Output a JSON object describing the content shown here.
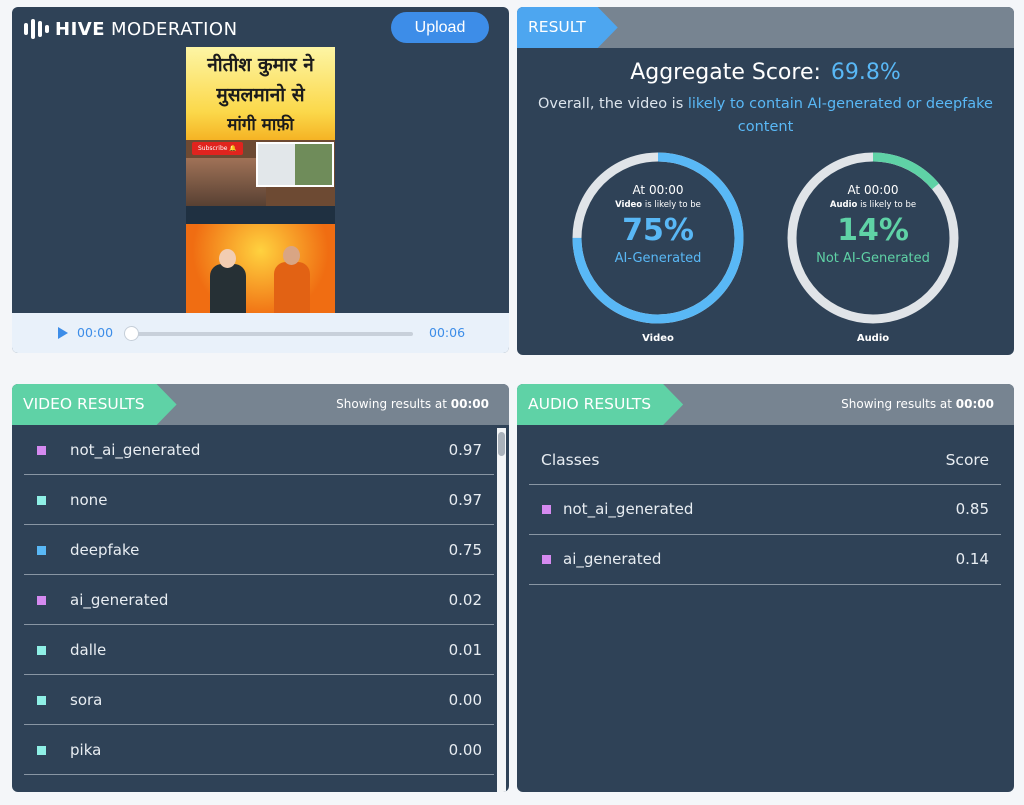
{
  "header": {
    "brand_bold": "HIVE",
    "brand_light": "MODERATION",
    "upload_label": "Upload"
  },
  "thumbnail": {
    "line1": "नीतीश कुमार ने",
    "line2": "मुसलमानो से",
    "line3": "मांगी माफ़ी",
    "subscribe": "Subscribe 🔔"
  },
  "player": {
    "current_time": "00:00",
    "end_time": "00:06",
    "progress": 0
  },
  "result": {
    "tab_label": "RESULT",
    "aggregate_label": "Aggregate Score:",
    "aggregate_value": "69.8%",
    "overall_prefix": "Overall, the video is",
    "overall_highlight": "likely to contain AI-generated or deepfake content",
    "gauges": [
      {
        "at": "At 00:00",
        "media": "Video",
        "likely": "is likely to be",
        "pct_text": "75%",
        "label": "AI-Generated",
        "name": "Video",
        "fraction": 0.75,
        "color": "#59b8f6"
      },
      {
        "at": "At 00:00",
        "media": "Audio",
        "likely": "is likely to be",
        "pct_text": "14%",
        "label": "Not AI-Generated",
        "name": "Audio",
        "fraction": 0.14,
        "color": "#5fd2a6"
      }
    ]
  },
  "video_results": {
    "tab_label": "VIDEO RESULTS",
    "showing_prefix": "Showing results at",
    "showing_time": "00:00",
    "rows": [
      {
        "cls": "not_ai_generated",
        "score": "0.97",
        "color": "#d58af0"
      },
      {
        "cls": "none",
        "score": "0.97",
        "color": "#8ff0e6"
      },
      {
        "cls": "deepfake",
        "score": "0.75",
        "color": "#59b8f6"
      },
      {
        "cls": "ai_generated",
        "score": "0.02",
        "color": "#d58af0"
      },
      {
        "cls": "dalle",
        "score": "0.01",
        "color": "#8ff0e6"
      },
      {
        "cls": "sora",
        "score": "0.00",
        "color": "#8ff0e6"
      },
      {
        "cls": "pika",
        "score": "0.00",
        "color": "#8ff0e6"
      }
    ]
  },
  "audio_results": {
    "tab_label": "AUDIO RESULTS",
    "showing_prefix": "Showing results at",
    "showing_time": "00:00",
    "col_classes": "Classes",
    "col_score": "Score",
    "rows": [
      {
        "cls": "not_ai_generated",
        "score": "0.85",
        "color": "#d58af0"
      },
      {
        "cls": "ai_generated",
        "score": "0.14",
        "color": "#d58af0"
      }
    ]
  }
}
